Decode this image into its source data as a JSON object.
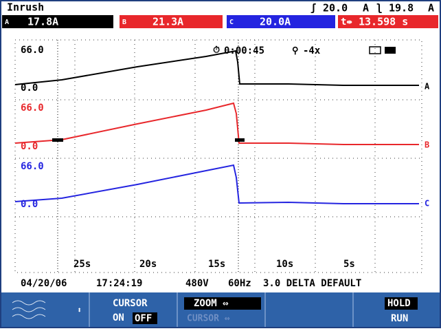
{
  "header": {
    "title": "Inrush",
    "cursor1": "20.0",
    "cursor1_unit": "A",
    "cursor2": "19.8",
    "cursor2_unit": "A"
  },
  "readings": [
    {
      "phase": "A",
      "value": "17.8A"
    },
    {
      "phase": "B",
      "value": "21.3A"
    },
    {
      "phase": "C",
      "value": "20.0A"
    },
    {
      "phase": "t⇹",
      "value": "13.598 s"
    }
  ],
  "plot": {
    "timer": "0:00:45",
    "zoom": "-4x",
    "traces": [
      {
        "name": "A",
        "top": "66.0",
        "zero": "0.0"
      },
      {
        "name": "B",
        "top": "66.0",
        "zero": "0.0"
      },
      {
        "name": "C",
        "top": "66.0",
        "zero": "0.0"
      }
    ],
    "time_labels": [
      "25s",
      "20s",
      "15s",
      "10s",
      "5s"
    ]
  },
  "status": {
    "date": "04/20/06",
    "time": "17:24:19",
    "voltage": "480V",
    "frequency": "60Hz",
    "config": "3.0 DELTA DEFAULT"
  },
  "softkeys": {
    "cursor": "CURSOR",
    "on": "ON",
    "off": "OFF",
    "zoom": "ZOOM ⇔",
    "cursor_move": "CURSOR ⇔",
    "hold": "HOLD",
    "run": "RUN"
  }
}
